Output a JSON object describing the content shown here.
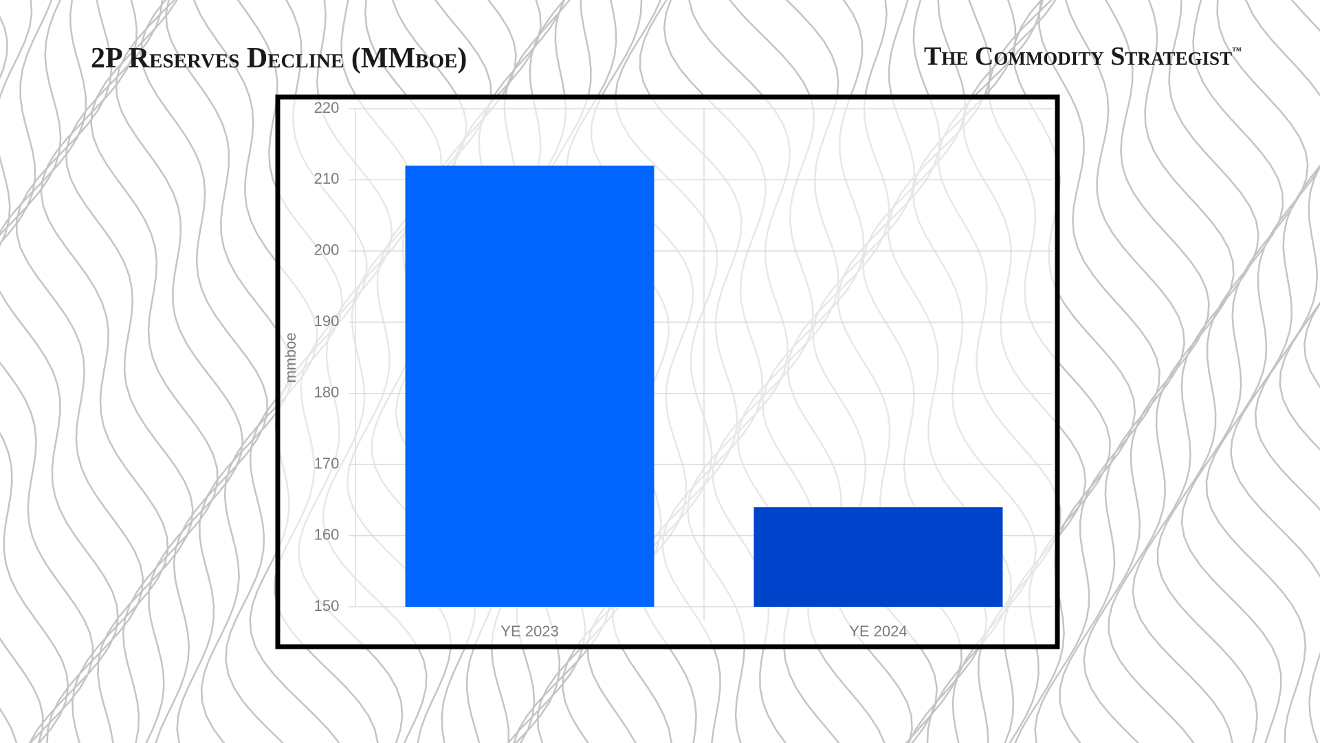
{
  "header": {
    "title": "2P Reserves Decline (MMboe)",
    "brand": "The Commodity  Strategist",
    "brand_mark": "™"
  },
  "chart_data": {
    "type": "bar",
    "y_label": "mmboe",
    "categories": [
      "YE 2023",
      "YE 2024"
    ],
    "values": [
      212,
      164
    ],
    "colors": [
      "#0066ff",
      "#0044cc"
    ],
    "ylim": [
      150,
      220
    ],
    "yticks": [
      150,
      160,
      170,
      180,
      190,
      200,
      210,
      220
    ],
    "grid": true
  }
}
